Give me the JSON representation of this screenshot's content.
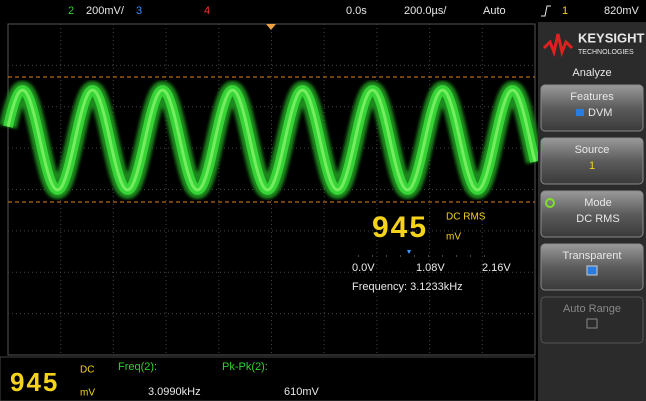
{
  "top_bar": {
    "ch2": "2",
    "ch2_scale": "200mV/",
    "ch3": "3",
    "ch4": "4",
    "time_offset": "0.0s",
    "time_scale": "200.0µs/",
    "trigger_mode": "Auto",
    "trigger_source": "1",
    "trigger_level": "820mV"
  },
  "brand": {
    "name": "KEYSIGHT",
    "sub": "TECHNOLOGIES"
  },
  "menu": {
    "title": "Analyze",
    "softkeys": [
      {
        "label": "Features",
        "value": "DVM"
      },
      {
        "label": "Source",
        "value": "1"
      },
      {
        "label": "Mode",
        "value": "DC RMS"
      },
      {
        "label": "Transparent"
      },
      {
        "label": "Auto Range"
      }
    ]
  },
  "dvm_overlay": {
    "reading": "945",
    "mode": "DC RMS",
    "unit": "mV",
    "scale": [
      "0.0V",
      "1.08V",
      "2.16V"
    ],
    "frequency": "Frequency: 3.1233kHz"
  },
  "measurements": {
    "dvm_reading": "945",
    "dvm_mode": "DC",
    "dvm_unit": "mV",
    "freq_label": "Freq(2):",
    "freq_value": "3.0990kHz",
    "pkpk_label": "Pk-Pk(2):",
    "pkpk_value": "610mV"
  }
}
